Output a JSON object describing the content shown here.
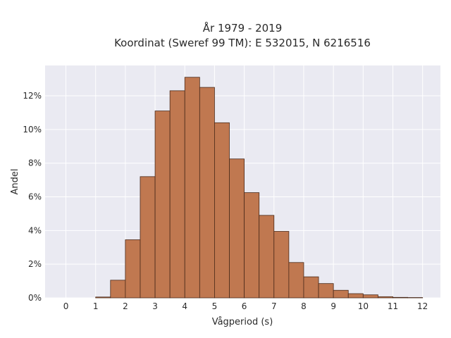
{
  "colors": {
    "bar_fill": "#c07850",
    "bar_edge": "#4a2a1a",
    "plot_bg": "#eaeaf2",
    "grid": "#ffffff"
  },
  "chart_data": {
    "type": "bar",
    "title": "År 1979 - 2019",
    "subtitle": "Koordinat (Sweref 99 TM): E 532015, N 6216516",
    "xlabel": "Vågperiod (s)",
    "ylabel": "Andel",
    "x_ticks": [
      "0",
      "1",
      "2",
      "3",
      "4",
      "5",
      "6",
      "7",
      "8",
      "9",
      "10",
      "11",
      "12"
    ],
    "y_ticks": [
      "0%",
      "2%",
      "4%",
      "6%",
      "8%",
      "10%",
      "12%"
    ],
    "xlim": [
      -0.7,
      12.6
    ],
    "ylim": [
      0,
      13.8
    ],
    "grid": true,
    "bin_width": 0.5,
    "bin_starts": [
      1.0,
      1.5,
      2.0,
      2.5,
      3.0,
      3.5,
      4.0,
      4.5,
      5.0,
      5.5,
      6.0,
      6.5,
      7.0,
      7.5,
      8.0,
      8.5,
      9.0,
      9.5,
      10.0,
      10.5,
      11.0,
      11.5
    ],
    "values": [
      0.05,
      1.05,
      3.45,
      7.2,
      11.1,
      12.3,
      13.1,
      12.5,
      10.4,
      8.25,
      6.25,
      4.9,
      3.95,
      2.1,
      1.25,
      0.85,
      0.45,
      0.25,
      0.18,
      0.07,
      0.03,
      0.02
    ],
    "unit": "%"
  }
}
